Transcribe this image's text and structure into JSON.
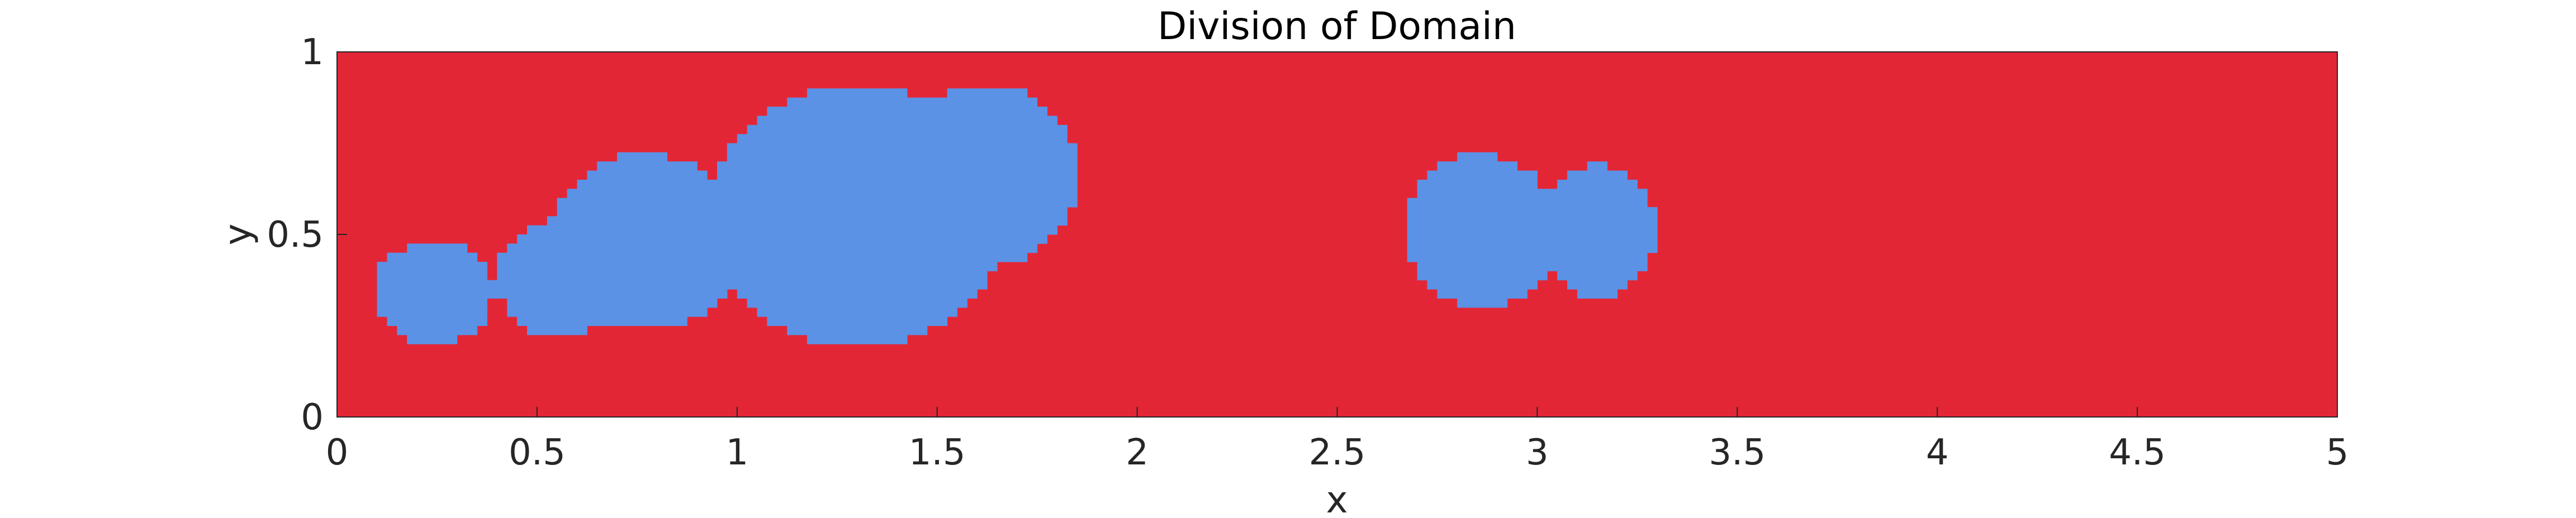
{
  "chart_data": {
    "type": "heatmap",
    "title": "Division of Domain",
    "xlabel": "x",
    "ylabel": "y",
    "xlim": [
      0,
      5
    ],
    "ylim": [
      0,
      1
    ],
    "x_ticks": [
      0,
      0.5,
      1,
      1.5,
      2,
      2.5,
      3,
      3.5,
      4,
      4.5,
      5
    ],
    "x_tick_labels": [
      "0",
      "0.5",
      "1",
      "1.5",
      "2",
      "2.5",
      "3",
      "3.5",
      "4",
      "4.5",
      "5"
    ],
    "y_ticks": [
      0,
      0.5,
      1
    ],
    "y_tick_labels": [
      "0",
      "0.5",
      "1"
    ],
    "grid": false,
    "colors": {
      "background_region": "#E32636",
      "subdomain_region": "#5B92E5"
    },
    "regions": [
      {
        "cx": 0.24,
        "cy": 0.34,
        "rx": 0.15,
        "ry": 0.14
      },
      {
        "cx": 0.56,
        "cy": 0.38,
        "rx": 0.16,
        "ry": 0.16
      },
      {
        "cx": 0.77,
        "cy": 0.48,
        "rx": 0.24,
        "ry": 0.24
      },
      {
        "cx": 1.3,
        "cy": 0.55,
        "rx": 0.37,
        "ry": 0.36
      },
      {
        "cx": 1.62,
        "cy": 0.66,
        "rx": 0.23,
        "ry": 0.25
      },
      {
        "cx": 2.86,
        "cy": 0.51,
        "rx": 0.19,
        "ry": 0.21
      },
      {
        "cx": 3.15,
        "cy": 0.51,
        "rx": 0.15,
        "ry": 0.18
      }
    ]
  }
}
